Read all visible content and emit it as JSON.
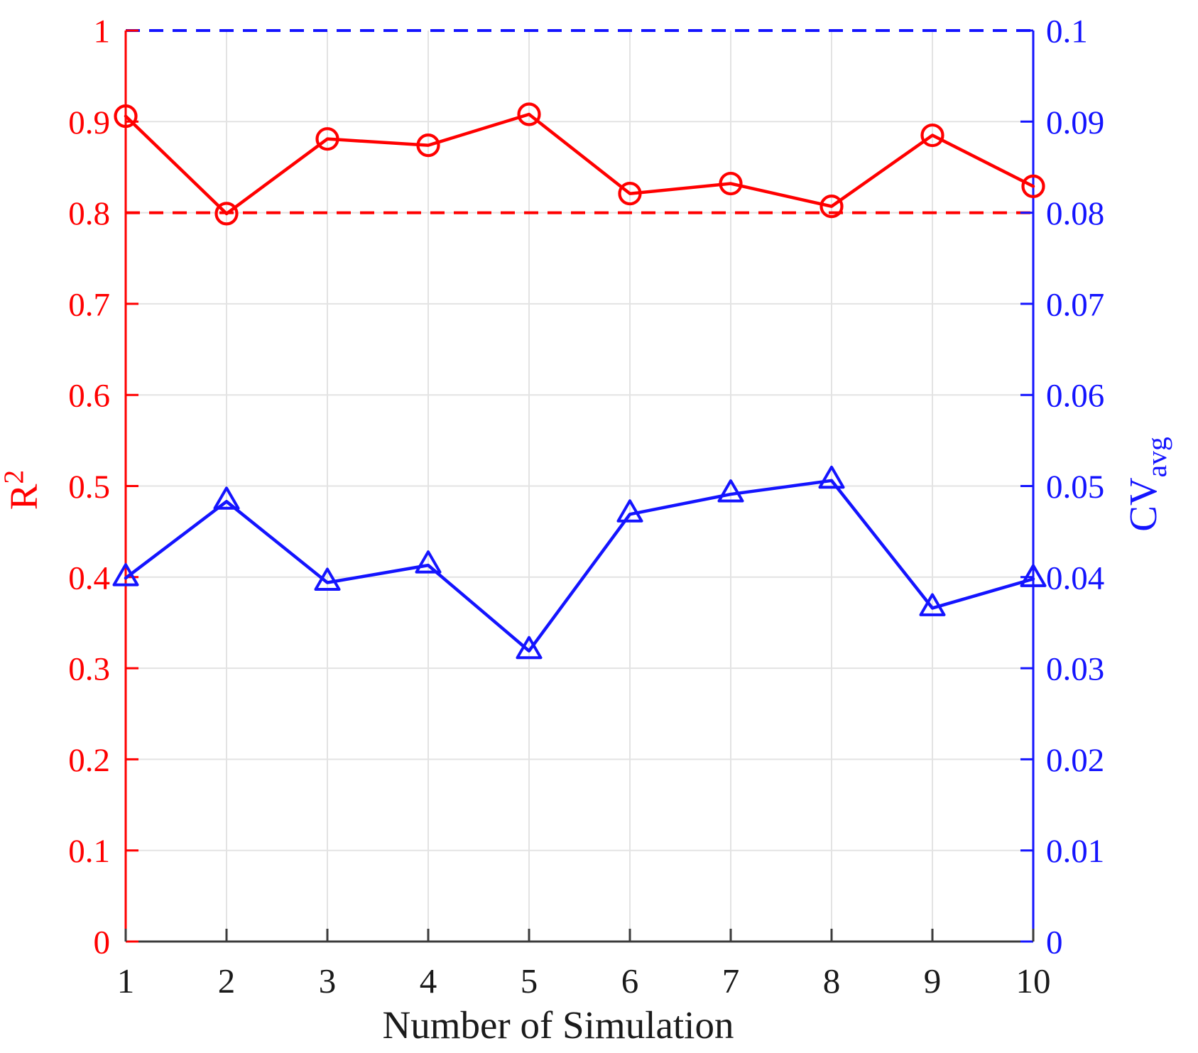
{
  "figure": {
    "background": "#ffffff"
  },
  "chart_data": {
    "type": "line",
    "title": "",
    "xlabel": "Number of Simulation",
    "x": [
      1,
      2,
      3,
      4,
      5,
      6,
      7,
      8,
      9,
      10
    ],
    "x_tick_labels": [
      "1",
      "2",
      "3",
      "4",
      "5",
      "6",
      "7",
      "8",
      "9",
      "10"
    ],
    "left_axis": {
      "label_base": "R",
      "label_superscript": "2",
      "color": "#ff0000",
      "min": 0,
      "max": 1,
      "tick_values": [
        0,
        0.1,
        0.2,
        0.3,
        0.4,
        0.5,
        0.6,
        0.7,
        0.8,
        0.9,
        1
      ],
      "tick_labels": [
        "0",
        "0.1",
        "0.2",
        "0.3",
        "0.4",
        "0.5",
        "0.6",
        "0.7",
        "0.8",
        "0.9",
        "1"
      ]
    },
    "right_axis": {
      "label_base": "CV",
      "label_subscript": "avg",
      "color": "#1414ff",
      "min": 0,
      "max": 0.1,
      "tick_values": [
        0,
        0.01,
        0.02,
        0.03,
        0.04,
        0.05,
        0.06,
        0.07,
        0.08,
        0.09,
        0.1
      ],
      "tick_labels": [
        "0",
        "0.01",
        "0.02",
        "0.03",
        "0.04",
        "0.05",
        "0.06",
        "0.07",
        "0.08",
        "0.09",
        "0.1"
      ]
    },
    "x_axis": {
      "color": "#3b3b3b",
      "tick_label_color": "#1a1a1a"
    },
    "grid": {
      "show": true,
      "color": "#e3e3e3"
    },
    "series": [
      {
        "name": "R2",
        "axis": "left",
        "color": "#ff0000",
        "marker": "circle",
        "line_style": "solid",
        "values": [
          0.906,
          0.799,
          0.881,
          0.874,
          0.908,
          0.821,
          0.832,
          0.807,
          0.885,
          0.829
        ]
      },
      {
        "name": "CVavg",
        "axis": "right",
        "color": "#1414ff",
        "marker": "triangle-up",
        "line_style": "solid",
        "values": [
          0.0399,
          0.0483,
          0.0394,
          0.0413,
          0.0319,
          0.0469,
          0.0491,
          0.0506,
          0.0366,
          0.0398
        ]
      }
    ],
    "reference_lines": [
      {
        "axis": "left",
        "value": 0.8,
        "color": "#ff0000",
        "style": "dashed"
      },
      {
        "axis": "right",
        "value": 0.1,
        "color": "#1414ff",
        "style": "dashed"
      }
    ]
  }
}
